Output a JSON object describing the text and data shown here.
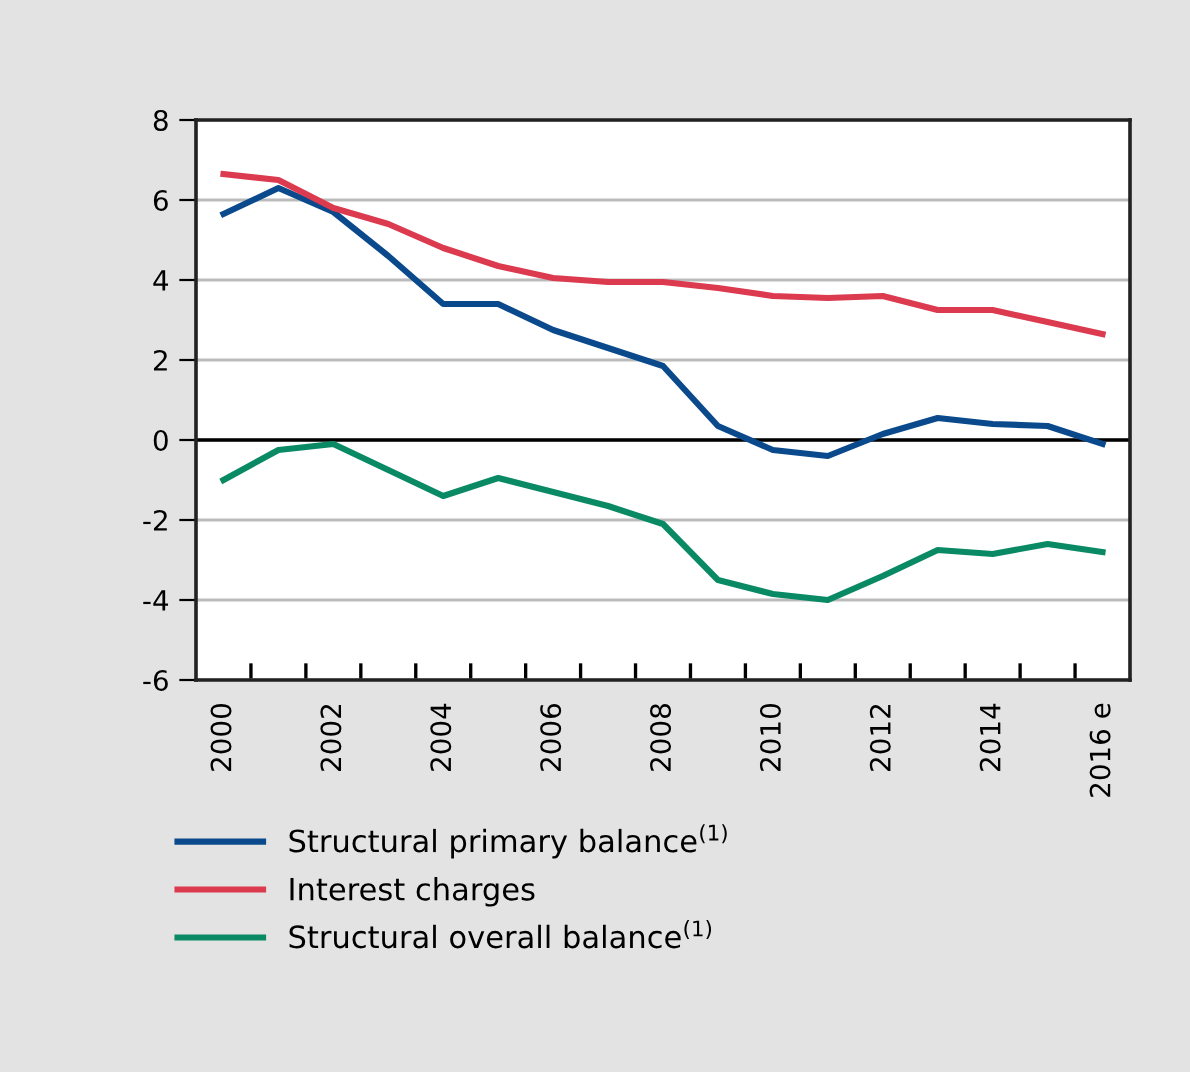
{
  "chart_data": {
    "type": "line",
    "categories": [
      "2000",
      null,
      "2002",
      null,
      "2004",
      null,
      "2006",
      null,
      "2008",
      null,
      "2010",
      null,
      "2012",
      null,
      "2014",
      null,
      "2016 e"
    ],
    "series": [
      {
        "name": "Structural primary balance$^{(1)}$",
        "color": "#0a4a8c",
        "values": [
          5.65,
          6.3,
          5.7,
          4.6,
          3.4,
          3.4,
          2.75,
          2.3,
          1.85,
          0.35,
          -0.25,
          -0.4,
          0.15,
          0.55,
          0.4,
          0.35,
          -0.1
        ]
      },
      {
        "name": "Interest charges",
        "color": "#dc3a4f",
        "values": [
          6.65,
          6.5,
          5.8,
          5.4,
          4.8,
          4.35,
          4.05,
          3.95,
          3.95,
          3.8,
          3.6,
          3.55,
          3.6,
          3.25,
          3.25,
          2.95,
          2.65
        ]
      },
      {
        "name": "Structural overall balance$^{(1)}$",
        "color": "#0a8a64",
        "values": [
          -1.0,
          -0.25,
          -0.1,
          -0.75,
          -1.4,
          -0.95,
          -1.3,
          -1.65,
          -2.1,
          -3.5,
          -3.85,
          -4.0,
          -3.4,
          -2.75,
          -2.85,
          -2.6,
          -2.8
        ]
      }
    ],
    "ylim": [
      -6,
      8
    ],
    "yticks": [
      -6,
      -4,
      -2,
      0,
      2,
      4,
      6,
      8
    ],
    "ref_lines": [
      {
        "axis": "y",
        "value": 0,
        "label": null,
        "color": "#000000"
      }
    ],
    "grid": "y",
    "legend": "bottom left",
    "marker": "none",
    "line_style": "solid"
  }
}
